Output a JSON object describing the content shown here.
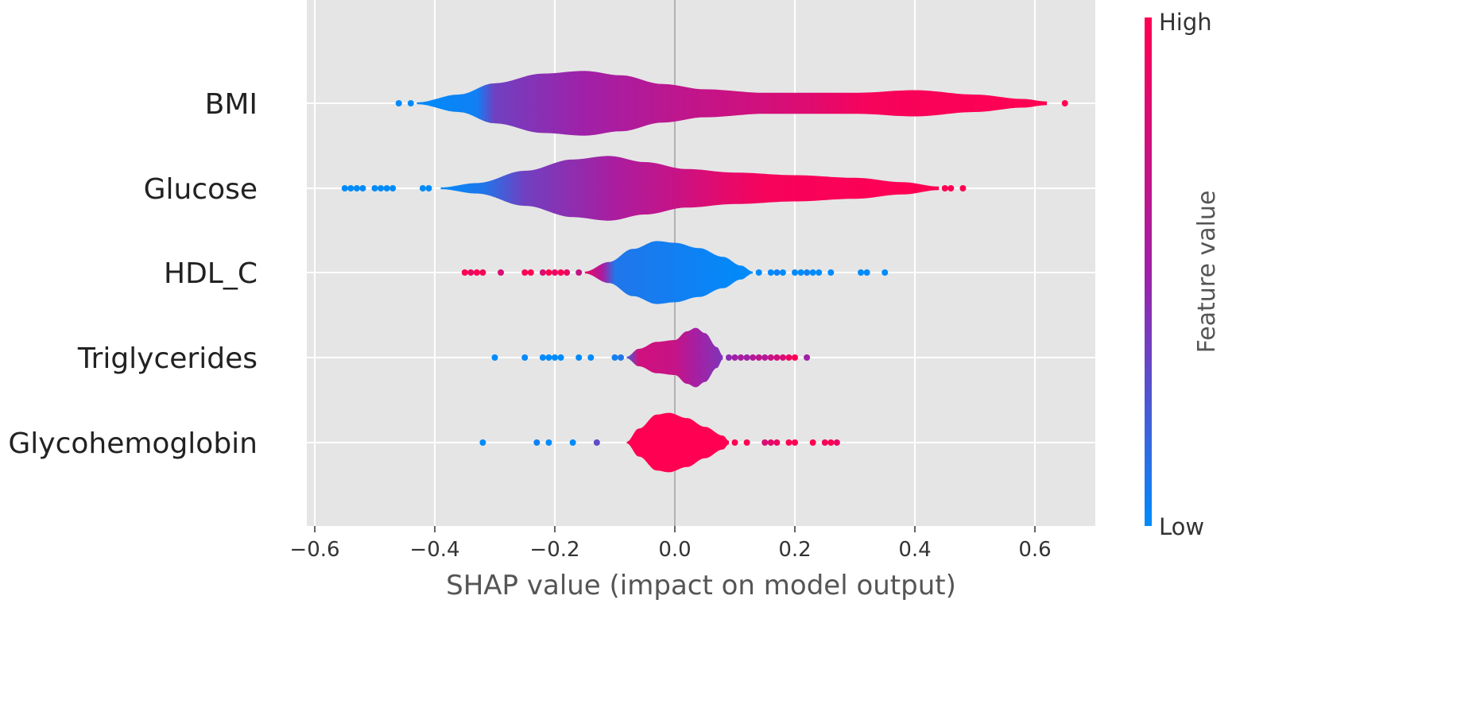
{
  "chart_data": {
    "type": "violin",
    "xlabel": "SHAP value (impact on model output)",
    "xlim": [
      -0.62,
      0.7
    ],
    "xticks": [
      -0.6,
      -0.4,
      -0.2,
      0.0,
      0.2,
      0.4,
      0.6
    ],
    "xtick_labels": [
      "−0.6",
      "−0.4",
      "−0.2",
      "0.0",
      "0.2",
      "0.4",
      "0.6"
    ],
    "grid": true,
    "colorbar": {
      "label": "Feature value",
      "high_label": "High",
      "low_label": "Low",
      "low_color": "#008bfb",
      "mid_color": "#a020a8",
      "high_color": "#ff0052"
    },
    "features": [
      {
        "name": "BMI",
        "range": [
          -0.43,
          0.62
        ],
        "profile": [
          [
            -0.43,
            0.01
          ],
          [
            -0.36,
            0.1
          ],
          [
            -0.3,
            0.23
          ],
          [
            -0.22,
            0.34
          ],
          [
            -0.15,
            0.37
          ],
          [
            -0.09,
            0.32
          ],
          [
            -0.02,
            0.22
          ],
          [
            0.05,
            0.16
          ],
          [
            0.15,
            0.12
          ],
          [
            0.3,
            0.12
          ],
          [
            0.4,
            0.15
          ],
          [
            0.5,
            0.1
          ],
          [
            0.58,
            0.05
          ],
          [
            0.62,
            0.02
          ]
        ],
        "color_stops": [
          [
            -0.43,
            0.0
          ],
          [
            -0.33,
            0.05
          ],
          [
            -0.3,
            0.35
          ],
          [
            -0.15,
            0.5
          ],
          [
            0.0,
            0.65
          ],
          [
            0.2,
            0.8
          ],
          [
            0.32,
            0.95
          ],
          [
            0.62,
            1.0
          ]
        ],
        "outliers": [
          [
            -0.46,
            0.0
          ],
          [
            -0.44,
            0.0
          ],
          [
            0.65,
            1.0
          ]
        ]
      },
      {
        "name": "Glucose",
        "range": [
          -0.39,
          0.44
        ],
        "profile": [
          [
            -0.39,
            0.01
          ],
          [
            -0.33,
            0.06
          ],
          [
            -0.25,
            0.2
          ],
          [
            -0.17,
            0.33
          ],
          [
            -0.11,
            0.37
          ],
          [
            -0.05,
            0.3
          ],
          [
            0.02,
            0.22
          ],
          [
            0.1,
            0.18
          ],
          [
            0.2,
            0.15
          ],
          [
            0.3,
            0.12
          ],
          [
            0.38,
            0.07
          ],
          [
            0.44,
            0.02
          ]
        ],
        "color_stops": [
          [
            -0.39,
            0.0
          ],
          [
            -0.32,
            0.1
          ],
          [
            -0.25,
            0.35
          ],
          [
            -0.1,
            0.55
          ],
          [
            0.0,
            0.7
          ],
          [
            0.08,
            0.85
          ],
          [
            0.15,
            0.95
          ],
          [
            0.44,
            1.0
          ]
        ],
        "outliers": [
          [
            -0.55,
            0.0
          ],
          [
            -0.54,
            0.0
          ],
          [
            -0.53,
            0.0
          ],
          [
            -0.52,
            0.0
          ],
          [
            -0.5,
            0.0
          ],
          [
            -0.49,
            0.0
          ],
          [
            -0.48,
            0.0
          ],
          [
            -0.47,
            0.0
          ],
          [
            -0.42,
            0.0
          ],
          [
            -0.41,
            0.0
          ],
          [
            0.45,
            1.0
          ],
          [
            0.46,
            1.0
          ],
          [
            0.48,
            1.0
          ]
        ]
      },
      {
        "name": "HDL_C",
        "range": [
          -0.15,
          0.13
        ],
        "profile": [
          [
            -0.15,
            0.01
          ],
          [
            -0.11,
            0.12
          ],
          [
            -0.07,
            0.27
          ],
          [
            -0.03,
            0.36
          ],
          [
            0.0,
            0.34
          ],
          [
            0.04,
            0.28
          ],
          [
            0.08,
            0.18
          ],
          [
            0.11,
            0.08
          ],
          [
            0.13,
            0.01
          ]
        ],
        "color_stops": [
          [
            -0.15,
            0.9
          ],
          [
            -0.12,
            0.55
          ],
          [
            -0.1,
            0.1
          ],
          [
            0.13,
            0.0
          ]
        ],
        "outliers": [
          [
            -0.35,
            1.0
          ],
          [
            -0.34,
            0.9
          ],
          [
            -0.33,
            1.0
          ],
          [
            -0.32,
            0.95
          ],
          [
            -0.29,
            0.8
          ],
          [
            -0.25,
            1.0
          ],
          [
            -0.24,
            1.0
          ],
          [
            -0.22,
            0.8
          ],
          [
            -0.21,
            1.0
          ],
          [
            -0.2,
            0.9
          ],
          [
            -0.19,
            1.0
          ],
          [
            -0.18,
            0.9
          ],
          [
            -0.16,
            0.7
          ],
          [
            0.14,
            0.0
          ],
          [
            0.16,
            0.0
          ],
          [
            0.17,
            0.05
          ],
          [
            0.18,
            0.0
          ],
          [
            0.2,
            0.0
          ],
          [
            0.21,
            0.0
          ],
          [
            0.22,
            0.05
          ],
          [
            0.23,
            0.0
          ],
          [
            0.24,
            0.0
          ],
          [
            0.26,
            0.0
          ],
          [
            0.31,
            0.0
          ],
          [
            0.32,
            0.0
          ],
          [
            0.35,
            0.0
          ]
        ]
      },
      {
        "name": "Triglycerides",
        "range": [
          -0.08,
          0.08
        ],
        "profile": [
          [
            -0.08,
            0.01
          ],
          [
            -0.06,
            0.1
          ],
          [
            -0.03,
            0.18
          ],
          [
            0.0,
            0.2
          ],
          [
            0.02,
            0.3
          ],
          [
            0.035,
            0.34
          ],
          [
            0.05,
            0.28
          ],
          [
            0.07,
            0.12
          ],
          [
            0.08,
            0.02
          ]
        ],
        "color_stops": [
          [
            -0.08,
            0.2
          ],
          [
            -0.06,
            0.75
          ],
          [
            0.0,
            0.7
          ],
          [
            0.03,
            0.55
          ],
          [
            0.08,
            0.4
          ]
        ],
        "outliers": [
          [
            -0.3,
            0.0
          ],
          [
            -0.25,
            0.0
          ],
          [
            -0.22,
            0.0
          ],
          [
            -0.21,
            0.0
          ],
          [
            -0.2,
            0.0
          ],
          [
            -0.19,
            0.0
          ],
          [
            -0.16,
            0.0
          ],
          [
            -0.14,
            0.0
          ],
          [
            -0.1,
            0.05
          ],
          [
            -0.09,
            0.1
          ],
          [
            0.09,
            0.45
          ],
          [
            0.1,
            0.5
          ],
          [
            0.11,
            0.55
          ],
          [
            0.12,
            0.5
          ],
          [
            0.13,
            0.6
          ],
          [
            0.14,
            0.65
          ],
          [
            0.15,
            0.6
          ],
          [
            0.16,
            0.7
          ],
          [
            0.17,
            0.75
          ],
          [
            0.18,
            0.8
          ],
          [
            0.19,
            0.9
          ],
          [
            0.2,
            1.0
          ],
          [
            0.22,
            0.5
          ]
        ]
      },
      {
        "name": "Glycohemoglobin",
        "range": [
          -0.08,
          0.09
        ],
        "profile": [
          [
            -0.08,
            0.01
          ],
          [
            -0.06,
            0.16
          ],
          [
            -0.03,
            0.32
          ],
          [
            -0.01,
            0.34
          ],
          [
            0.02,
            0.28
          ],
          [
            0.05,
            0.18
          ],
          [
            0.08,
            0.08
          ],
          [
            0.09,
            0.02
          ]
        ],
        "color_stops": [
          [
            -0.08,
            1.0
          ],
          [
            0.09,
            1.0
          ]
        ],
        "outliers": [
          [
            -0.32,
            0.0
          ],
          [
            -0.23,
            0.05
          ],
          [
            -0.21,
            0.0
          ],
          [
            -0.17,
            0.0
          ],
          [
            -0.13,
            0.3
          ],
          [
            0.1,
            1.0
          ],
          [
            0.12,
            1.0
          ],
          [
            0.15,
            0.8
          ],
          [
            0.16,
            0.85
          ],
          [
            0.17,
            0.9
          ],
          [
            0.19,
            1.0
          ],
          [
            0.2,
            1.0
          ],
          [
            0.23,
            1.0
          ],
          [
            0.25,
            0.95
          ],
          [
            0.26,
            1.0
          ],
          [
            0.27,
            0.9
          ]
        ]
      }
    ]
  }
}
